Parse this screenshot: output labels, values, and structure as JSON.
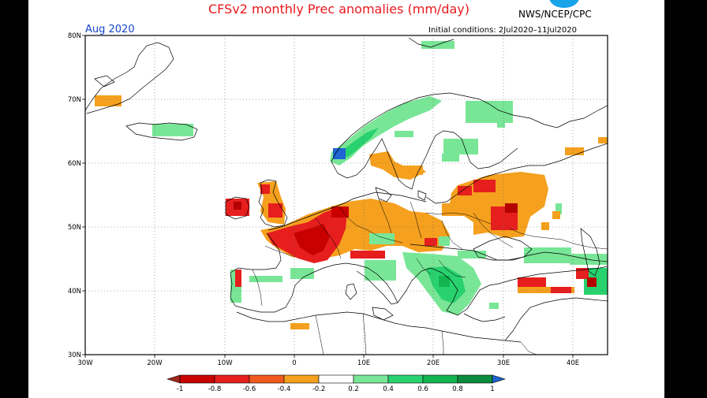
{
  "title": "CFSv2 monthly Prec anomalies (mm/day)",
  "agency": "NWS/NCEP/CPC",
  "month_label": "Aug 2020",
  "initial_conditions": "Initial conditions: 2Jul2020–11Jul2020",
  "map": {
    "lat_labels": [
      "80N",
      "70N",
      "60N",
      "50N",
      "40N",
      "30N"
    ],
    "lon_labels": [
      "30W",
      "20W",
      "10W",
      "0",
      "10E",
      "20E",
      "30E",
      "40E"
    ],
    "lat_range": [
      30,
      80
    ],
    "lon_range": [
      -30,
      45
    ],
    "gridlines": "dotted"
  },
  "colorbar": {
    "labels": [
      "-1",
      "-0.8",
      "-0.6",
      "-0.4",
      "-0.2",
      "0.2",
      "0.4",
      "0.6",
      "0.8",
      "1"
    ],
    "colors": [
      "#a0281e",
      "#c80000",
      "#e61e1e",
      "#f05a1e",
      "#f5a01e",
      "#ffffff",
      "#78e696",
      "#28d26e",
      "#14b450",
      "#0a8c3c",
      "#1e64d2"
    ]
  },
  "legend_colors": {
    "dark_red": "#b40000",
    "red": "#e61e1e",
    "orange": "#f5a01e",
    "light_green": "#78e696",
    "green": "#28d26e",
    "dark_green": "#14b450",
    "blue": "#1e64d2"
  }
}
